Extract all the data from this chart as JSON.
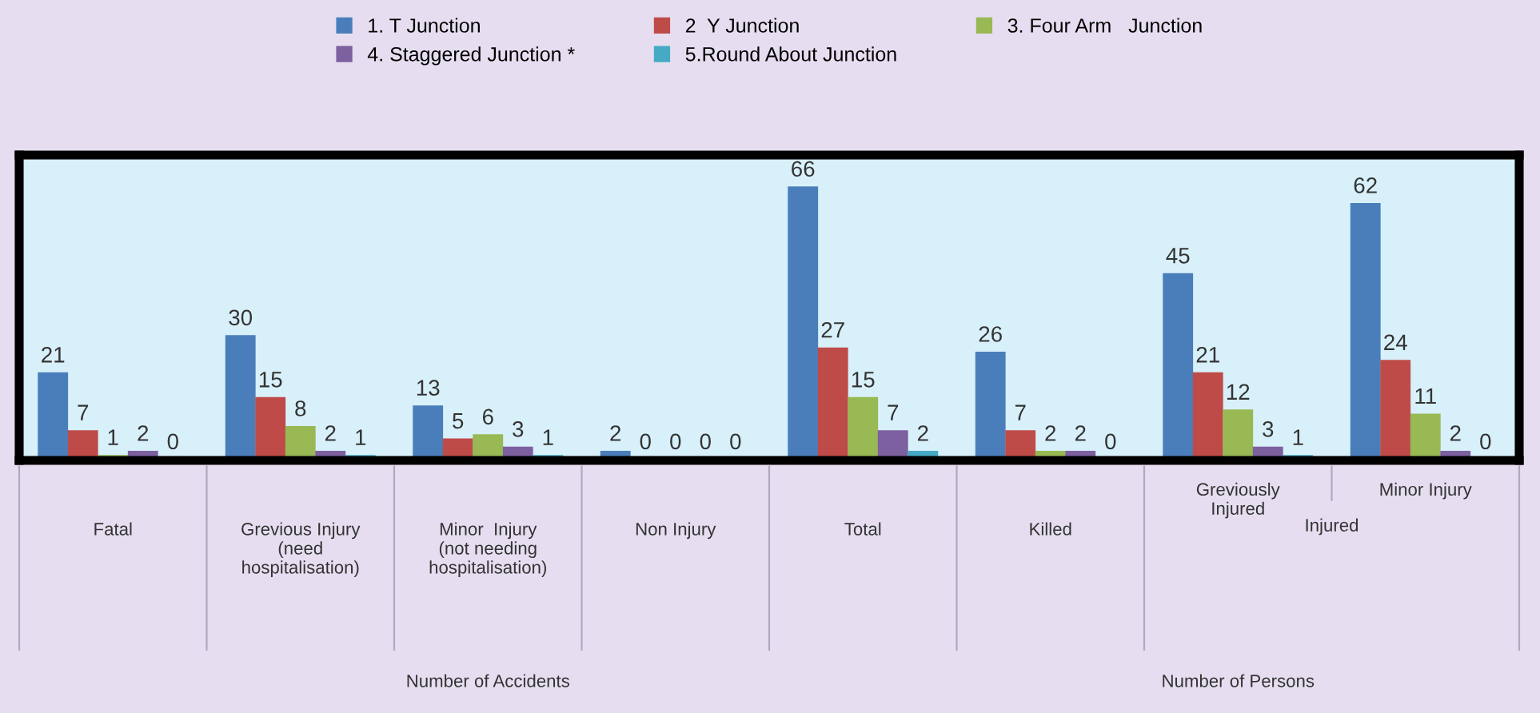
{
  "chart_data": {
    "type": "bar",
    "categories": [
      "Fatal",
      "Grevious Injury\n(need\nhospitalisation)",
      "Minor  Injury\n(not needing\nhospitalisation)",
      "Non Injury",
      "Total",
      "Killed",
      "Greviously\nInjured",
      "Minor Injury"
    ],
    "series": [
      {
        "name": "1. T Junction",
        "color": "#4a7ebb",
        "values": [
          21,
          30,
          13,
          2,
          66,
          26,
          45,
          62
        ]
      },
      {
        "name": "2  Y Junction",
        "color": "#be4b48",
        "values": [
          7,
          15,
          5,
          0,
          27,
          7,
          21,
          24
        ]
      },
      {
        "name": "3. Four Arm   Junction",
        "color": "#98b954",
        "values": [
          1,
          8,
          6,
          0,
          15,
          2,
          12,
          11
        ]
      },
      {
        "name": "4. Staggered Junction *",
        "color": "#7d60a0",
        "values": [
          2,
          2,
          3,
          0,
          7,
          2,
          3,
          2
        ]
      },
      {
        "name": "5.Round About Junction",
        "color": "#46aac5",
        "values": [
          0,
          1,
          1,
          0,
          2,
          0,
          1,
          0
        ]
      }
    ],
    "annotations": [
      "Injured",
      "Number of Accidents",
      "Number of Persons"
    ],
    "data_labels": true,
    "legend": "top",
    "grid": false
  }
}
